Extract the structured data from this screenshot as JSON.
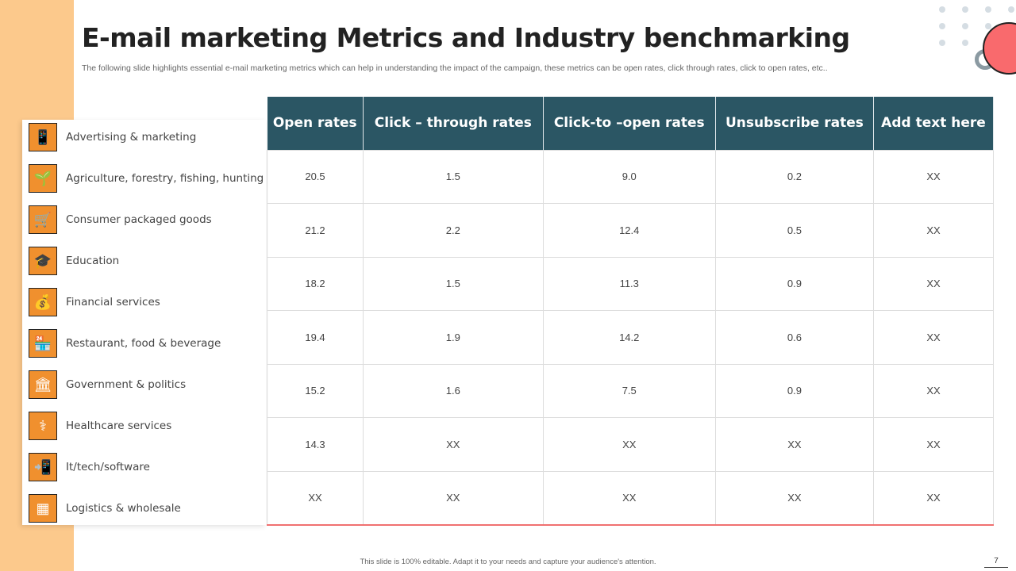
{
  "title": "E-mail marketing Metrics and Industry benchmarking",
  "subtitle": "The following slide highlights essential e-mail marketing metrics which can help in understanding the impact of the campaign, these metrics can be open rates, click through rates, click to open rates, etc..",
  "industries": [
    {
      "label": "Advertising & marketing",
      "icon": "mobile-phone-icon",
      "glyph": "📱"
    },
    {
      "label": "Agriculture, forestry, fishing, hunting",
      "icon": "plant-hand-icon",
      "glyph": "🌱"
    },
    {
      "label": "Consumer packaged goods",
      "icon": "shopping-cart-person-icon",
      "glyph": "🛒"
    },
    {
      "label": "Education",
      "icon": "graduation-cap-icon",
      "glyph": "🎓"
    },
    {
      "label": "Financial services",
      "icon": "money-bag-icon",
      "glyph": "💰"
    },
    {
      "label": "Restaurant, food & beverage",
      "icon": "restaurant-icon",
      "glyph": "🏪"
    },
    {
      "label": "Government & politics",
      "icon": "government-building-icon",
      "glyph": "🏛"
    },
    {
      "label": "Healthcare services",
      "icon": "healthcare-icon",
      "glyph": "⚕"
    },
    {
      "label": "It/tech/software",
      "icon": "smartphone-icon",
      "glyph": "📲"
    },
    {
      "label": "Logistics & wholesale",
      "icon": "warehouse-icon",
      "glyph": "▦"
    }
  ],
  "table": {
    "headers": [
      "Open rates",
      "Click – through rates",
      "Click-to –open rates",
      "Unsubscribe rates",
      "Add text here"
    ],
    "rows": [
      [
        "20.5",
        "1.5",
        "9.0",
        "0.2",
        "XX"
      ],
      [
        "21.2",
        "2.2",
        "12.4",
        "0.5",
        "XX"
      ],
      [
        "18.2",
        "1.5",
        "11.3",
        "0.9",
        "XX"
      ],
      [
        "19.4",
        "1.9",
        "14.2",
        "0.6",
        "XX"
      ],
      [
        "15.2",
        "1.6",
        "7.5",
        "0.9",
        "XX"
      ],
      [
        "14.3",
        "XX",
        "XX",
        "XX",
        "XX"
      ],
      [
        "XX",
        "XX",
        "XX",
        "XX",
        "XX"
      ]
    ]
  },
  "footer": "This slide is 100% editable. Adapt it to your needs and capture your audience's attention.",
  "page_number": "7",
  "colors": {
    "header": "#2b5664",
    "accent": "#f0902e",
    "sidebar": "#fcc98c",
    "circle": "#f96a6d"
  }
}
